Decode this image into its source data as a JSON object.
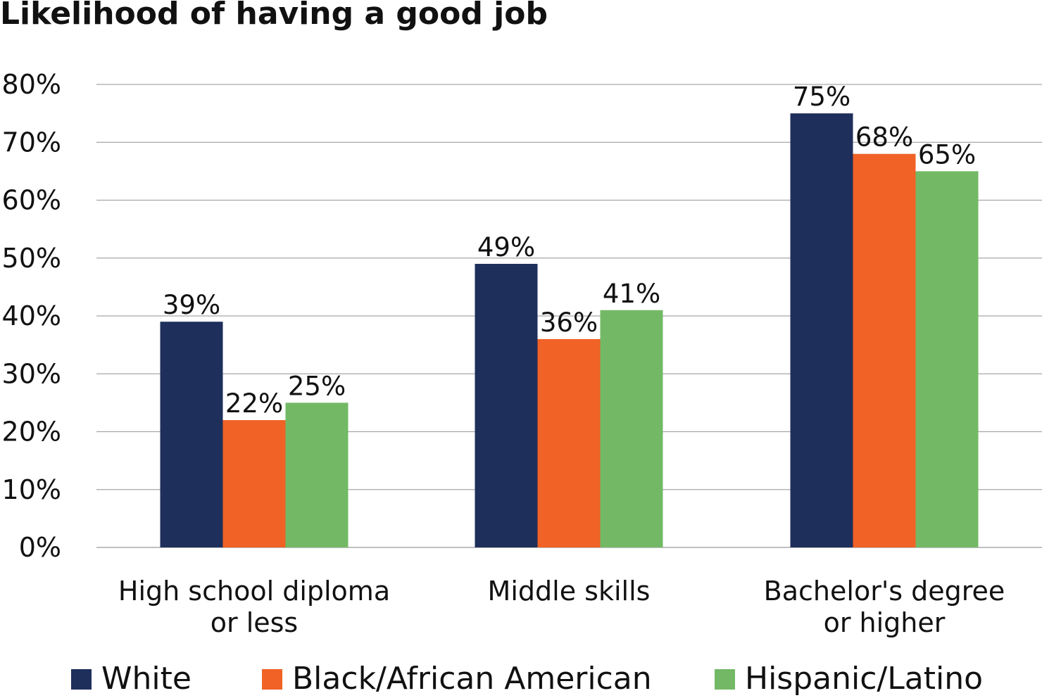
{
  "chart_data": {
    "type": "bar",
    "title": "Likelihood of having a good job",
    "xlabel": "",
    "ylabel": "",
    "ylim": [
      0,
      80
    ],
    "yticks": [
      "0%",
      "10%",
      "20%",
      "30%",
      "40%",
      "50%",
      "60%",
      "70%",
      "80%"
    ],
    "grid": true,
    "legend_position": "bottom",
    "categories": [
      [
        "High school diploma",
        "or less"
      ],
      [
        "Middle skills"
      ],
      [
        "Bachelor's degree",
        "or higher"
      ]
    ],
    "series": [
      {
        "name": "White",
        "color": "#1F2F5C",
        "values": [
          39,
          49,
          75
        ],
        "labels": [
          "39%",
          "49%",
          "75%"
        ]
      },
      {
        "name": "Black/African American",
        "color": "#F06225",
        "values": [
          22,
          36,
          68
        ],
        "labels": [
          "22%",
          "36%",
          "68%"
        ]
      },
      {
        "name": "Hispanic/Latino",
        "color": "#73B965",
        "values": [
          25,
          41,
          65
        ],
        "labels": [
          "25%",
          "41%",
          "65%"
        ]
      }
    ]
  }
}
